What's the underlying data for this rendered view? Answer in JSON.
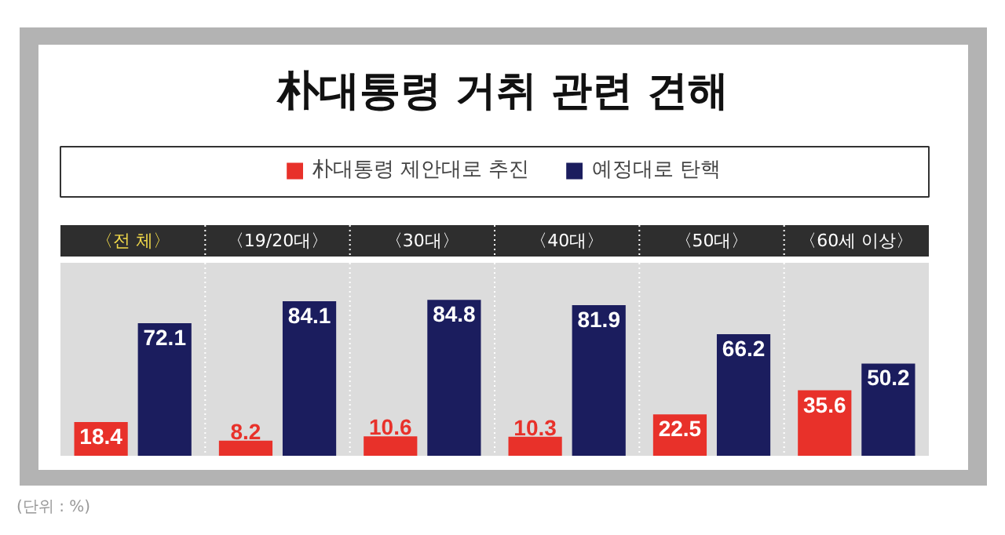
{
  "chart_data": {
    "type": "bar",
    "title": "朴대통령 거취 관련 견해",
    "categories": [
      "〈전 체〉",
      "〈19/20대〉",
      "〈30대〉",
      "〈40대〉",
      "〈50대〉",
      "〈60세 이상〉"
    ],
    "series": [
      {
        "name": "朴대통령 제안대로 추진",
        "color": "#e8312a",
        "values": [
          18.4,
          8.2,
          10.6,
          10.3,
          22.5,
          35.6
        ]
      },
      {
        "name": "예정대로 탄핵",
        "color": "#1b1d5e",
        "values": [
          72.1,
          84.1,
          84.8,
          81.9,
          66.2,
          50.2
        ]
      }
    ],
    "ylim": [
      0,
      105
    ],
    "tick_labels": "x",
    "legend": "top",
    "data_labels": true,
    "annotations": [
      "(단위 : %)"
    ]
  }
}
